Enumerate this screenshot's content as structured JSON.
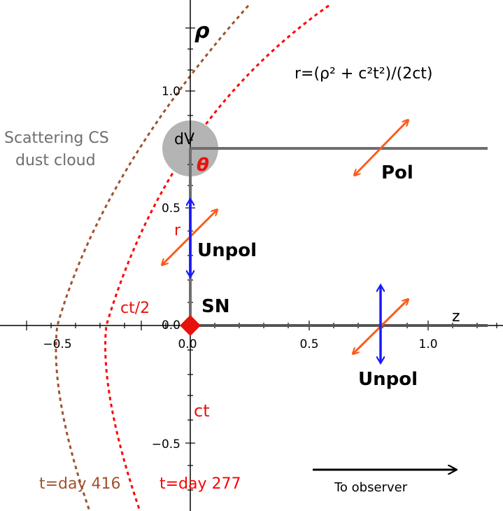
{
  "axes": {
    "y_axis_label": "ρ",
    "x_axis_label": "z",
    "x_ticks": [
      "−0.5",
      "0.0",
      "0.5",
      "1.0"
    ],
    "y_ticks": [
      "1.0",
      "0.5",
      "0.0",
      "−0.5"
    ]
  },
  "labels": {
    "equation": "r=(ρ² + c²t²)/(2ct)",
    "scattering": "Scattering CS",
    "dust_cloud": "dust cloud",
    "dV": "dV",
    "theta": "θ",
    "pol": "Pol",
    "r": "r",
    "unpol_top": "Unpol",
    "unpol_bottom": "Unpol",
    "sn": "SN",
    "ct_half": "ct/2",
    "ct": "ct",
    "t_416": "t=day 416",
    "t_277": "t=day 277",
    "to_observer": "To observer"
  },
  "colors": {
    "red_curve": "#ff0000",
    "brown_curve": "#a0522d",
    "orange_arrow": "#ff5a1a",
    "blue_arrow": "#1a1aff",
    "cloud_gray": "#b4b4b4",
    "line_gray": "#6e6e6e"
  },
  "icons": {
    "sn_marker": "red-diamond",
    "pol_arrow": "double-headed-arrow",
    "observer_arrow": "right-arrow"
  }
}
